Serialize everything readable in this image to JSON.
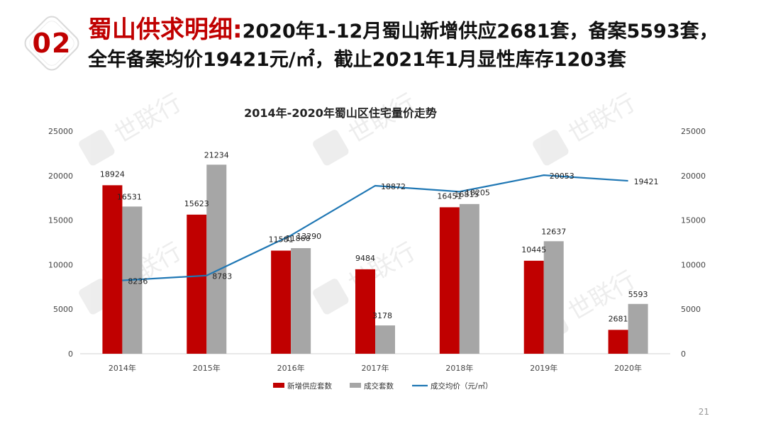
{
  "header": {
    "section_number": "02",
    "highlight": "蜀山供求明细:",
    "line1": "2020年1-12月蜀山新增供应2681套，备案5593套，",
    "line2": "全年备案均价19421元/㎡，截止2021年1月显性库存1203套"
  },
  "watermark": {
    "text": "世联行"
  },
  "page_number": "21",
  "colors": {
    "accent": "#c00000",
    "bar_gray": "#a6a6a6",
    "line_blue": "#1f77b4"
  },
  "chart_data": {
    "type": "bar",
    "title": "2014年-2020年蜀山区住宅量价走势",
    "categories": [
      "2014年",
      "2015年",
      "2016年",
      "2017年",
      "2018年",
      "2019年",
      "2020年"
    ],
    "series": [
      {
        "name": "新增供应套数",
        "type": "bar",
        "axis": "left",
        "color": "#c00000",
        "values": [
          18924,
          15623,
          11581,
          9484,
          16451,
          10445,
          2681
        ]
      },
      {
        "name": "成交套数",
        "type": "bar",
        "axis": "left",
        "color": "#a6a6a6",
        "values": [
          16531,
          21234,
          11860,
          3178,
          16815,
          12637,
          5593
        ]
      },
      {
        "name": "成交均价（元/㎡）",
        "type": "line",
        "axis": "right",
        "color": "#1f77b4",
        "values": [
          8236,
          8783,
          13290,
          18872,
          18205,
          20053,
          19421
        ]
      }
    ],
    "y_left": {
      "min": 0,
      "max": 25000,
      "ticks": [
        0,
        5000,
        10000,
        15000,
        20000,
        25000
      ]
    },
    "y_right": {
      "min": 0,
      "max": 25000,
      "ticks": [
        0,
        5000,
        10000,
        15000,
        20000,
        25000
      ]
    },
    "legend": "bottom",
    "grid": false
  }
}
